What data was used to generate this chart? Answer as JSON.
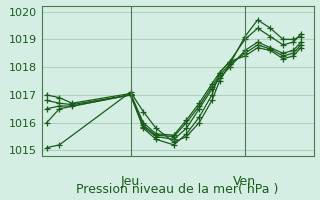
{
  "title": "Pression niveau de la mer( hPa )",
  "background_color": "#d4eee4",
  "grid_color": "#b0d0c0",
  "line_color": "#1a5c1a",
  "ylim": [
    1014.8,
    1020.2
  ],
  "yticks": [
    1015,
    1016,
    1017,
    1018,
    1019,
    1020
  ],
  "xlabel_fontsize": 9,
  "tick_fontsize": 8,
  "vlines_x": [
    0.33,
    0.78
  ],
  "vlines_labels": [
    "Jeu",
    "Ven"
  ],
  "series": [
    {
      "x": [
        0.0,
        0.05,
        0.33,
        0.38,
        0.43,
        0.5,
        0.55,
        0.6,
        0.65,
        0.68,
        0.72,
        0.78,
        0.83,
        0.88,
        0.93,
        0.97,
        1.0
      ],
      "y": [
        1015.1,
        1015.2,
        1017.1,
        1016.4,
        1015.8,
        1015.3,
        1015.5,
        1016.0,
        1016.8,
        1017.5,
        1018.1,
        1019.1,
        1019.7,
        1019.4,
        1019.0,
        1019.0,
        1019.1
      ]
    },
    {
      "x": [
        0.0,
        0.05,
        0.33,
        0.38,
        0.43,
        0.5,
        0.55,
        0.6,
        0.65,
        0.68,
        0.72,
        0.78,
        0.83,
        0.88,
        0.93,
        0.97,
        1.0
      ],
      "y": [
        1016.0,
        1016.5,
        1017.0,
        1015.8,
        1015.4,
        1015.2,
        1015.6,
        1016.2,
        1017.0,
        1017.8,
        1018.2,
        1019.0,
        1019.4,
        1019.1,
        1018.8,
        1018.9,
        1019.2
      ]
    },
    {
      "x": [
        0.0,
        0.05,
        0.1,
        0.33,
        0.38,
        0.43,
        0.5,
        0.55,
        0.6,
        0.65,
        0.68,
        0.72,
        0.78,
        0.83,
        0.88,
        0.93,
        0.97,
        1.0
      ],
      "y": [
        1016.5,
        1016.6,
        1016.6,
        1017.0,
        1015.85,
        1015.5,
        1015.4,
        1015.8,
        1016.5,
        1017.2,
        1017.6,
        1018.0,
        1018.6,
        1018.9,
        1018.7,
        1018.5,
        1018.6,
        1018.9
      ]
    },
    {
      "x": [
        0.0,
        0.05,
        0.1,
        0.33,
        0.38,
        0.43,
        0.5,
        0.55,
        0.6,
        0.65,
        0.68,
        0.72,
        0.78,
        0.83,
        0.88,
        0.93,
        0.97,
        1.0
      ],
      "y": [
        1016.8,
        1016.7,
        1016.65,
        1017.0,
        1015.9,
        1015.55,
        1015.5,
        1016.0,
        1016.6,
        1017.3,
        1017.7,
        1018.1,
        1018.5,
        1018.8,
        1018.65,
        1018.4,
        1018.5,
        1018.8
      ]
    },
    {
      "x": [
        0.0,
        0.05,
        0.1,
        0.33,
        0.38,
        0.43,
        0.5,
        0.55,
        0.6,
        0.65,
        0.68,
        0.72,
        0.78,
        0.83,
        0.88,
        0.93,
        0.97,
        1.0
      ],
      "y": [
        1017.0,
        1016.9,
        1016.7,
        1017.05,
        1016.0,
        1015.6,
        1015.55,
        1016.1,
        1016.7,
        1017.4,
        1017.8,
        1018.2,
        1018.4,
        1018.7,
        1018.6,
        1018.3,
        1018.4,
        1018.7
      ]
    }
  ]
}
